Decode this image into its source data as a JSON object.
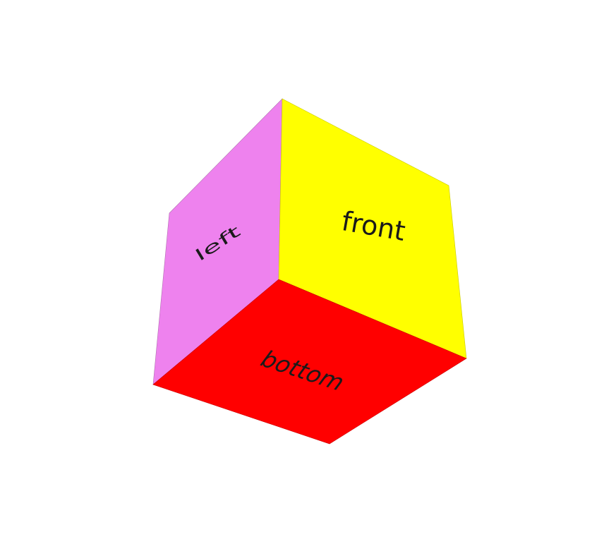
{
  "cube": {
    "faces": {
      "left": {
        "label": "left",
        "color": "#ee82ee"
      },
      "front": {
        "label": "front",
        "color": "#ffff00"
      },
      "bottom": {
        "label": "bottom",
        "color": "#ff0000"
      }
    },
    "background": "#ffffff"
  }
}
